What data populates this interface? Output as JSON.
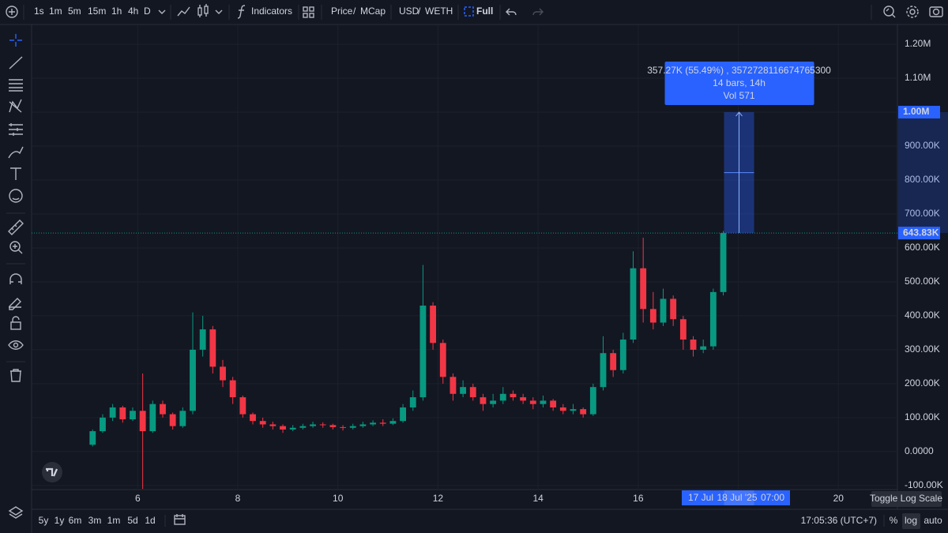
{
  "toolbar": {
    "intervals": [
      "1s",
      "1m",
      "5m",
      "15m",
      "1h",
      "4h",
      "D"
    ],
    "active_interval": "1h",
    "indicators": "Indicators",
    "price": "Price",
    "separator": "/",
    "mcap": "MCap",
    "usd": "USD",
    "weth": "WETH",
    "full": "Full"
  },
  "chart_data": {
    "type": "candlestick",
    "x": [
      5.1,
      5.3,
      5.5,
      5.7,
      5.9,
      6.1,
      6.3,
      6.5,
      6.7,
      6.9,
      7.1,
      7.3,
      7.5,
      7.7,
      7.9,
      8.1,
      8.3,
      8.5,
      8.7,
      8.9,
      9.1,
      9.3,
      9.5,
      9.7,
      9.9,
      10.1,
      10.3,
      10.5,
      10.7,
      10.9,
      11.1,
      11.3,
      11.5,
      11.7,
      11.9,
      12.1,
      12.3,
      12.5,
      12.7,
      12.9,
      13.1,
      13.3,
      13.5,
      13.7,
      13.9,
      14.1,
      14.3,
      14.5,
      14.7,
      14.9,
      15.1,
      15.3,
      15.5,
      15.7,
      15.9,
      16.1,
      16.3,
      16.5,
      16.7,
      16.9,
      17.1,
      17.3,
      17.5,
      17.7
    ],
    "open": [
      20000,
      60000,
      100000,
      130000,
      95000,
      120000,
      60000,
      140000,
      110000,
      75000,
      120000,
      300000,
      360000,
      250000,
      210000,
      160000,
      110000,
      90000,
      80000,
      75000,
      65000,
      70000,
      75000,
      80000,
      78000,
      72000,
      70000,
      75000,
      80000,
      85000,
      82000,
      90000,
      130000,
      160000,
      430000,
      320000,
      220000,
      170000,
      190000,
      160000,
      140000,
      150000,
      170000,
      160000,
      150000,
      140000,
      150000,
      130000,
      120000,
      125000,
      110000,
      190000,
      290000,
      240000,
      330000,
      540000,
      420000,
      380000,
      450000,
      390000,
      330000,
      300000,
      310000,
      470000
    ],
    "high": [
      65000,
      110000,
      140000,
      135000,
      130000,
      230000,
      150000,
      150000,
      115000,
      130000,
      410000,
      400000,
      370000,
      270000,
      220000,
      165000,
      115000,
      100000,
      88000,
      80000,
      78000,
      82000,
      88000,
      86000,
      82000,
      78000,
      82000,
      88000,
      92000,
      95000,
      98000,
      140000,
      180000,
      550000,
      440000,
      330000,
      230000,
      210000,
      200000,
      170000,
      170000,
      190000,
      180000,
      170000,
      160000,
      165000,
      155000,
      140000,
      140000,
      130000,
      200000,
      340000,
      300000,
      350000,
      590000,
      630000,
      470000,
      480000,
      460000,
      400000,
      340000,
      330000,
      480000,
      650000
    ],
    "low": [
      15000,
      55000,
      90000,
      85000,
      90000,
      -110000,
      55000,
      100000,
      65000,
      70000,
      110000,
      280000,
      230000,
      190000,
      140000,
      100000,
      80000,
      70000,
      65000,
      55000,
      60000,
      65000,
      70000,
      70000,
      65000,
      62000,
      65000,
      70000,
      75000,
      75000,
      78000,
      85000,
      120000,
      150000,
      300000,
      200000,
      150000,
      160000,
      150000,
      120000,
      130000,
      140000,
      150000,
      140000,
      125000,
      130000,
      120000,
      110000,
      110000,
      100000,
      105000,
      180000,
      220000,
      230000,
      320000,
      380000,
      360000,
      370000,
      370000,
      300000,
      280000,
      290000,
      300000,
      460000
    ],
    "close": [
      60000,
      100000,
      130000,
      95000,
      120000,
      60000,
      140000,
      110000,
      75000,
      120000,
      300000,
      360000,
      250000,
      210000,
      160000,
      110000,
      90000,
      80000,
      75000,
      65000,
      70000,
      75000,
      80000,
      78000,
      72000,
      70000,
      75000,
      80000,
      85000,
      82000,
      90000,
      130000,
      160000,
      430000,
      320000,
      220000,
      170000,
      190000,
      160000,
      140000,
      150000,
      170000,
      160000,
      150000,
      140000,
      150000,
      130000,
      120000,
      125000,
      110000,
      190000,
      290000,
      240000,
      330000,
      540000,
      420000,
      380000,
      450000,
      390000,
      330000,
      300000,
      310000,
      470000,
      643830
    ],
    "up_color": "#089981",
    "down_color": "#f23645",
    "xlim": [
      3.88,
      21.18
    ],
    "ylim": [
      -112000,
      1256000
    ],
    "xticks": [
      6,
      8,
      10,
      12,
      14,
      16,
      18,
      20
    ],
    "yticks": [
      {
        "value": -100000,
        "label": "-100.00K"
      },
      {
        "value": 0,
        "label": "0.0000"
      },
      {
        "value": 100000,
        "label": "100.00K"
      },
      {
        "value": 200000,
        "label": "200.00K"
      },
      {
        "value": 300000,
        "label": "300.00K"
      },
      {
        "value": 400000,
        "label": "400.00K"
      },
      {
        "value": 500000,
        "label": "500.00K"
      },
      {
        "value": 600000,
        "label": "600.00K"
      },
      {
        "value": 700000,
        "label": "700.00K"
      },
      {
        "value": 800000,
        "label": "800.00K"
      },
      {
        "value": 900000,
        "label": "900.00K"
      },
      {
        "value": 1000000,
        "label": "1.00M"
      },
      {
        "value": 1100000,
        "label": "1.10M"
      },
      {
        "value": 1200000,
        "label": "1.20M"
      }
    ],
    "grid": true,
    "last_price": {
      "value": 643830,
      "label": "643.83K"
    },
    "measure_target": {
      "value": 1000000,
      "label": "1.00M"
    },
    "measure_info": [
      "357.27K (55.49%) , 3572728116674765300",
      "14 bars, 14h",
      "Vol 571"
    ],
    "crosshair_labels": [
      "17 Jul",
      "18 Jul '25",
      "07:00"
    ]
  },
  "bottom_bar": {
    "ranges": [
      "5y",
      "1y",
      "6m",
      "3m",
      "1m",
      "5d",
      "1d"
    ],
    "clock": "17:05:36 (UTC+7)",
    "percent": "%",
    "log": "log",
    "auto": "auto",
    "tooltip": "Toggle Log Scale"
  }
}
